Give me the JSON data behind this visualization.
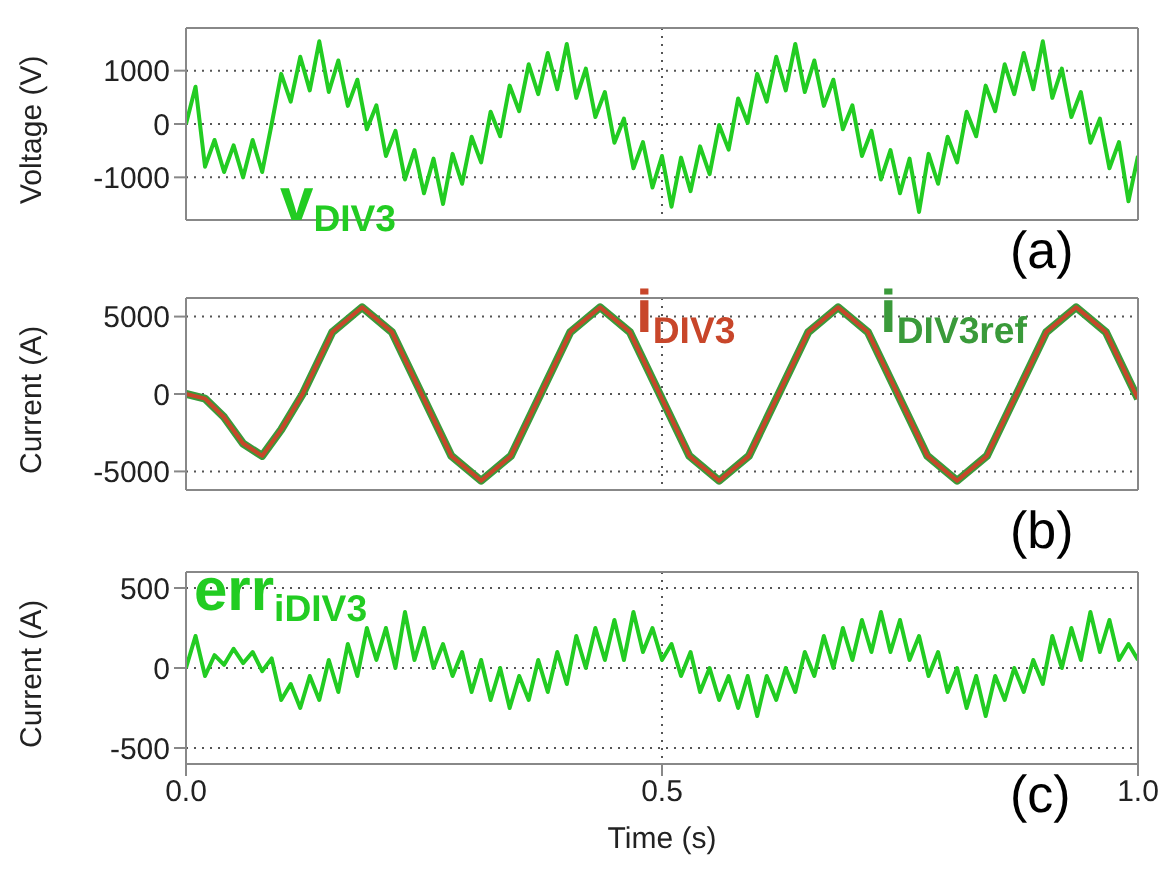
{
  "chart_data": [
    {
      "type": "line",
      "ylabel": "Voltage (V)",
      "x": [
        0,
        0.01,
        0.02,
        0.03,
        0.04,
        0.05,
        0.06,
        0.07,
        0.08,
        0.09,
        0.1,
        0.11,
        0.12,
        0.13,
        0.14,
        0.15,
        0.16,
        0.17,
        0.18,
        0.19,
        0.2,
        0.21,
        0.22,
        0.23,
        0.24,
        0.25,
        0.26,
        0.27,
        0.28,
        0.29,
        0.3,
        0.31,
        0.32,
        0.33,
        0.34,
        0.35,
        0.36,
        0.37,
        0.38,
        0.39,
        0.4,
        0.41,
        0.42,
        0.43,
        0.44,
        0.45,
        0.46,
        0.47,
        0.48,
        0.49,
        0.5,
        0.51,
        0.52,
        0.53,
        0.54,
        0.55,
        0.56,
        0.57,
        0.58,
        0.59,
        0.6,
        0.61,
        0.62,
        0.63,
        0.64,
        0.65,
        0.66,
        0.67,
        0.68,
        0.69,
        0.7,
        0.71,
        0.72,
        0.73,
        0.74,
        0.75,
        0.76,
        0.77,
        0.78,
        0.79,
        0.8,
        0.81,
        0.82,
        0.83,
        0.84,
        0.85,
        0.86,
        0.87,
        0.88,
        0.89,
        0.9,
        0.91,
        0.92,
        0.93,
        0.94,
        0.95,
        0.96,
        0.97,
        0.98,
        0.99,
        1
      ],
      "series": [
        {
          "name": "v$_{DIV3}$",
          "color": "#22cc22",
          "values": [
            0,
            700,
            -800,
            -300,
            -900,
            -400,
            -1000,
            -300,
            -900,
            0,
            940,
            420,
            1260,
            630,
            1550,
            600,
            1190,
            340,
            830,
            -100,
            350,
            -600,
            -130,
            -1040,
            -490,
            -1300,
            -650,
            -1500,
            -560,
            -1120,
            -240,
            -720,
            230,
            -230,
            720,
            240,
            1120,
            560,
            1330,
            650,
            1500,
            490,
            1040,
            130,
            600,
            -350,
            100,
            -830,
            -340,
            -1190,
            -600,
            -1550,
            -630,
            -1260,
            -420,
            -940,
            -20,
            -480,
            480,
            20,
            940,
            420,
            1260,
            630,
            1500,
            600,
            1190,
            340,
            830,
            -100,
            350,
            -600,
            -130,
            -1040,
            -490,
            -1300,
            -650,
            -1650,
            -560,
            -1120,
            -240,
            -720,
            230,
            -230,
            720,
            240,
            1120,
            560,
            1330,
            650,
            1550,
            490,
            1040,
            130,
            600,
            -350,
            100,
            -830,
            -340,
            -1450,
            -600
          ]
        }
      ],
      "xlim": [
        0,
        1
      ],
      "xticks": [
        0,
        0.5,
        1
      ],
      "ylim": [
        -1800,
        1800
      ],
      "yticks": [
        -1000,
        0,
        1000
      ],
      "grid": true,
      "tick_labels": "y",
      "annotations": [
        "(a)"
      ]
    },
    {
      "type": "line",
      "ylabel": "Current (A)",
      "x": [
        0,
        0.02,
        0.04,
        0.06,
        0.08,
        0.1,
        0.1225,
        0.15375,
        0.185,
        0.21625,
        0.2475,
        0.27875,
        0.31,
        0.34125,
        0.3725,
        0.40375,
        0.435,
        0.46625,
        0.4975,
        0.52875,
        0.56,
        0.59125,
        0.6225,
        0.65375,
        0.685,
        0.71625,
        0.7475,
        0.77875,
        0.81,
        0.84125,
        0.8725,
        0.90375,
        0.935,
        0.96625,
        0.9975,
        1
      ],
      "series": [
        {
          "name": "i$_{DIV3ref}$",
          "color": "#3a9a3a",
          "values": [
            0,
            -300,
            -1500,
            -3200,
            -4000,
            -2300,
            0,
            4000,
            5600,
            4000,
            0,
            -4000,
            -5600,
            -4000,
            0,
            4000,
            5600,
            4000,
            0,
            -4000,
            -5600,
            -4000,
            0,
            4000,
            5600,
            4000,
            0,
            -4000,
            -5600,
            -4000,
            0,
            4000,
            5600,
            4000,
            0,
            -300
          ]
        },
        {
          "name": "i$_{DIV3}$",
          "color": "#c8462a",
          "values": [
            0,
            -300,
            -1500,
            -3200,
            -4000,
            -2300,
            0,
            4000,
            5600,
            4000,
            0,
            -4000,
            -5600,
            -4000,
            0,
            4000,
            5600,
            4000,
            0,
            -4000,
            -5600,
            -4000,
            0,
            4000,
            5600,
            4000,
            0,
            -4000,
            -5600,
            -4000,
            0,
            4000,
            5600,
            4000,
            0,
            -300
          ]
        }
      ],
      "xlim": [
        0,
        1
      ],
      "xticks": [
        0,
        0.5,
        1
      ],
      "ylim": [
        -6200,
        6200
      ],
      "yticks": [
        -5000,
        0,
        5000
      ],
      "grid": true,
      "tick_labels": "y",
      "annotations": [
        "(b)"
      ]
    },
    {
      "type": "line",
      "xlabel": "Time (s)",
      "ylabel": "Current (A)",
      "x": [
        0,
        0.01,
        0.02,
        0.03,
        0.04,
        0.05,
        0.06,
        0.07,
        0.08,
        0.09,
        0.1,
        0.11,
        0.12,
        0.13,
        0.14,
        0.15,
        0.16,
        0.17,
        0.18,
        0.19,
        0.2,
        0.21,
        0.22,
        0.23,
        0.24,
        0.25,
        0.26,
        0.27,
        0.28,
        0.29,
        0.3,
        0.31,
        0.32,
        0.33,
        0.34,
        0.35,
        0.36,
        0.37,
        0.38,
        0.39,
        0.4,
        0.41,
        0.42,
        0.43,
        0.44,
        0.45,
        0.46,
        0.47,
        0.48,
        0.49,
        0.5,
        0.51,
        0.52,
        0.53,
        0.54,
        0.55,
        0.56,
        0.57,
        0.58,
        0.59,
        0.6,
        0.61,
        0.62,
        0.63,
        0.64,
        0.65,
        0.66,
        0.67,
        0.68,
        0.69,
        0.7,
        0.71,
        0.72,
        0.73,
        0.74,
        0.75,
        0.76,
        0.77,
        0.78,
        0.79,
        0.8,
        0.81,
        0.82,
        0.83,
        0.84,
        0.85,
        0.86,
        0.87,
        0.88,
        0.89,
        0.9,
        0.91,
        0.92,
        0.93,
        0.94,
        0.95,
        0.96,
        0.97,
        0.98,
        0.99,
        1
      ],
      "series": [
        {
          "name": "err$_{iDIV3}$",
          "color": "#22cc22",
          "values": [
            0,
            200,
            -50,
            80,
            20,
            120,
            30,
            100,
            -20,
            60,
            -200,
            -100,
            -250,
            -50,
            -200,
            50,
            -150,
            150,
            -50,
            250,
            50,
            250,
            0,
            350,
            50,
            250,
            0,
            150,
            -50,
            100,
            -150,
            50,
            -200,
            0,
            -250,
            -50,
            -200,
            50,
            -150,
            100,
            -100,
            200,
            0,
            250,
            50,
            300,
            50,
            350,
            100,
            250,
            50,
            150,
            -50,
            100,
            -150,
            0,
            -200,
            -50,
            -250,
            -50,
            -300,
            -50,
            -200,
            0,
            -150,
            100,
            -50,
            200,
            0,
            250,
            50,
            300,
            100,
            350,
            100,
            300,
            50,
            200,
            -50,
            100,
            -150,
            0,
            -250,
            -50,
            -300,
            -50,
            -200,
            0,
            -150,
            50,
            -100,
            200,
            0,
            250,
            50,
            350,
            100,
            300,
            50,
            150,
            50
          ]
        }
      ],
      "xlim": [
        0,
        1
      ],
      "xticks": [
        {
          "value": 0,
          "label": "0.0"
        },
        0.5,
        {
          "value": 1,
          "label": "1.0"
        }
      ],
      "ylim": [
        -600,
        600
      ],
      "yticks": [
        -500,
        0,
        500
      ],
      "grid": true,
      "annotations": [
        "(c)"
      ]
    }
  ]
}
